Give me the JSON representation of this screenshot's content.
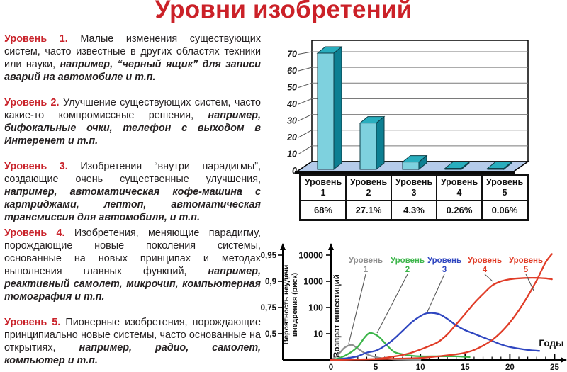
{
  "title": "Уровни изобретений",
  "colors": {
    "accent_red": "#c9232b",
    "body_text": "#231f20",
    "bar_front": "#7ed1de",
    "bar_top": "#29aebe",
    "bar_side": "#0d7f92",
    "floor_blue": "#b5cbea"
  },
  "levels": [
    {
      "label": "Уровень 1.",
      "text": "Малые изменения существующих систем, часто известные в других областях техники или науки,",
      "example": "например, “черный ящик” для записи аварий на автомобиле и т.п."
    },
    {
      "label": "Уровень 2.",
      "text": "Улучшение существующих систем, часто какие-то компромиссные решения,",
      "example": "например, бифокальные очки, телефон с выходом в Интеренет и т.п."
    },
    {
      "label": "Уровень 3.",
      "text": "Изобретения “внутри парадигмы”, создающие очень существенные улучшения,",
      "example": "например, автоматическая кофе-машина с картриджами, лептоп, автоматическая трансмиссия для автомобиля, и т.п."
    },
    {
      "label": "Уровень 4.",
      "text": "Изобретения, меняющие парадигму, порождающие новые поколения системы, основанные на новых принципах и методах выполнения главных функций,",
      "example": "например, реактивный самолет, микрочип, компьютерная томография и т.п."
    },
    {
      "label": "Уровень 5.",
      "text": "Пионерные изобретения, порождающие принципиально новые системы, часто основанные на открытиях,",
      "example": "например, радио, самолет, компьютер и т.п."
    }
  ],
  "table": {
    "columns": [
      {
        "header": [
          "Уровень",
          "1"
        ],
        "value": "68%"
      },
      {
        "header": [
          "Уровень",
          "2"
        ],
        "value": "27.1%"
      },
      {
        "header": [
          "Уровень",
          "3"
        ],
        "value": "4.3%"
      },
      {
        "header": [
          "Уровень",
          "4"
        ],
        "value": "0.26%"
      },
      {
        "header": [
          "Уровень",
          "5"
        ],
        "value": "0.06%"
      }
    ]
  },
  "chart_data": [
    {
      "type": "bar",
      "title": "",
      "categories": [
        "Уровень 1",
        "Уровень 2",
        "Уровень 3",
        "Уровень 4",
        "Уровень 5"
      ],
      "values": [
        68,
        27.1,
        4.3,
        0.26,
        0.06
      ],
      "xlabel": "",
      "ylabel": "",
      "ylim": [
        0,
        70
      ],
      "yticks": [
        0,
        10,
        20,
        30,
        40,
        50,
        60,
        70
      ],
      "grid": true,
      "style": "3d-cyan-bars-blue-floor"
    },
    {
      "type": "line",
      "title": "",
      "xlabel": "Годы",
      "xlim": [
        0,
        25
      ],
      "xticks": [
        0,
        5,
        10,
        15,
        20,
        25
      ],
      "risk_axis": {
        "label_lines": [
          "Вероятность неудачи",
          "внедрения (риск)"
        ],
        "ticks": [
          "0,95",
          "0,9",
          "0,75",
          "0,5"
        ]
      },
      "roi_axis": {
        "label": "Возврат инвестиций",
        "scale": "log",
        "ticks": [
          10000,
          1000,
          100,
          10
        ]
      },
      "series": [
        {
          "name": "Уровень 1",
          "color": "#8f8f8f",
          "points": [
            [
              0,
              1
            ],
            [
              0.5,
              1.3
            ],
            [
              1,
              1.9
            ],
            [
              1.5,
              2.9
            ],
            [
              2,
              3.6
            ],
            [
              2.4,
              3.7
            ],
            [
              3,
              2.7
            ],
            [
              3.5,
              2.1
            ],
            [
              4,
              1.65
            ],
            [
              5,
              1.28
            ],
            [
              6,
              1.13
            ],
            [
              7,
              1.06
            ],
            [
              8,
              1.03
            ],
            [
              10,
              1.01
            ]
          ]
        },
        {
          "name": "Уровень 2",
          "color": "#3cb54a",
          "points": [
            [
              0,
              1
            ],
            [
              1,
              1.2
            ],
            [
              2,
              1.75
            ],
            [
              3,
              3.2
            ],
            [
              3.7,
              6.8
            ],
            [
              4.3,
              10.6
            ],
            [
              5,
              9.2
            ],
            [
              5.5,
              6.9
            ],
            [
              6,
              4.5
            ],
            [
              7,
              2.1
            ],
            [
              8,
              1.65
            ],
            [
              9,
              1.45
            ],
            [
              10,
              1.37
            ],
            [
              12,
              1.37
            ],
            [
              14,
              1.37
            ],
            [
              15.5,
              1.28
            ]
          ]
        },
        {
          "name": "Уровень 3",
          "color": "#2f46c0",
          "points": [
            [
              0,
              1
            ],
            [
              2,
              1.2
            ],
            [
              3,
              1.4
            ],
            [
              4,
              1.9
            ],
            [
              5,
              2.25
            ],
            [
              6,
              3.4
            ],
            [
              7,
              6.1
            ],
            [
              8,
              12.8
            ],
            [
              9,
              27
            ],
            [
              10,
              47
            ],
            [
              10.8,
              61
            ],
            [
              12,
              57
            ],
            [
              13,
              37
            ],
            [
              14,
              21
            ],
            [
              15,
              13.6
            ],
            [
              16,
              10
            ],
            [
              17,
              7.3
            ],
            [
              18,
              5.4
            ],
            [
              19,
              3.9
            ],
            [
              20,
              3.1
            ],
            [
              21,
              2.7
            ],
            [
              22,
              2.4
            ],
            [
              23.3,
              2.2
            ]
          ]
        },
        {
          "name": "Уровень 4",
          "color": "#e03c27",
          "points": [
            [
              0,
              1
            ],
            [
              3,
              1.05
            ],
            [
              5,
              1.1
            ],
            [
              7,
              1.35
            ],
            [
              8,
              1.55
            ],
            [
              9,
              1.9
            ],
            [
              10,
              2.5
            ],
            [
              11,
              3.4
            ],
            [
              12,
              4.9
            ],
            [
              13,
              9.4
            ],
            [
              14,
              23
            ],
            [
              15,
              57
            ],
            [
              16,
              145
            ],
            [
              17,
              325
            ],
            [
              18,
              690
            ],
            [
              19,
              1000
            ],
            [
              20,
              1200
            ],
            [
              21,
              1300
            ],
            [
              22,
              1350
            ],
            [
              23,
              1350
            ],
            [
              24,
              1300
            ],
            [
              24.7,
              1200
            ]
          ]
        },
        {
          "name": "Уровень 5",
          "color": "#e03c27",
          "points": [
            [
              0,
              1
            ],
            [
              5,
              1.07
            ],
            [
              8,
              1.13
            ],
            [
              10,
              1.2
            ],
            [
              12,
              1.37
            ],
            [
              14,
              1.65
            ],
            [
              15,
              1.9
            ],
            [
              16,
              2.4
            ],
            [
              17,
              3.5
            ],
            [
              18,
              5.7
            ],
            [
              19,
              11.3
            ],
            [
              20,
              27
            ],
            [
              21,
              78
            ],
            [
              22,
              270
            ],
            [
              23,
              1100
            ],
            [
              24,
              5300
            ],
            [
              24.7,
              11000
            ]
          ]
        }
      ],
      "legend_position": "top"
    }
  ]
}
